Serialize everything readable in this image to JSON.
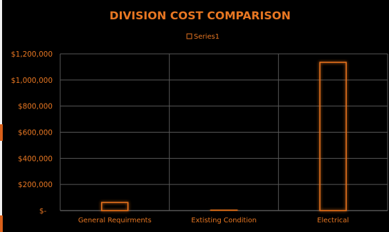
{
  "chart_data": {
    "type": "bar",
    "title": "DIVISION COST COMPARISON",
    "legend": {
      "entries": [
        "Series1"
      ],
      "position": "top"
    },
    "categories": [
      "General Requirments",
      "Extisting Condition",
      "Electrical"
    ],
    "series": [
      {
        "name": "Series1",
        "values": [
          62000,
          5000,
          1135000
        ]
      }
    ],
    "y_tick_labels": [
      "$-",
      "$200,000",
      "$400,000",
      "$600,000",
      "$800,000",
      "$1,000,000",
      "$1,200,000"
    ],
    "y_ticks": [
      0,
      200000,
      400000,
      600000,
      800000,
      1000000,
      1200000
    ],
    "ylim": [
      0,
      1200000
    ],
    "grid": {
      "horizontal": true,
      "vertical": true
    },
    "colors": {
      "background": "#000000",
      "bar_outline": "#e8731f",
      "bar_glow": "#ff7a1a",
      "text": "#e87722",
      "grid": "#595959"
    }
  }
}
